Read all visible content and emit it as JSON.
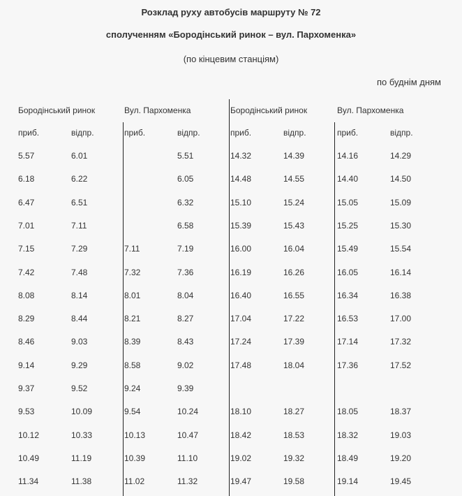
{
  "title": "Розклад руху автобусів маршруту № 72",
  "subtitle": "сполученням «Бородінський ринок – вул. Пархоменка»",
  "note": "(по кінцевим станціям)",
  "days": "по буднім дням",
  "stations": [
    "Бородінський ринок",
    "Вул. Пархоменка",
    "Бородінський ринок",
    "Вул. Пархоменка"
  ],
  "subheaders": [
    "приб.",
    "відпр.",
    "приб.",
    "відпр.",
    "приб.",
    "відпр.",
    "приб.",
    "відпр."
  ],
  "rows": [
    [
      "5.57",
      "6.01",
      "",
      "5.51",
      "14.32",
      "14.39",
      "14.16",
      "14.29"
    ],
    [
      "6.18",
      "6.22",
      "",
      "6.05",
      "14.48",
      "14.55",
      "14.40",
      "14.50"
    ],
    [
      "6.47",
      "6.51",
      "",
      "6.32",
      "15.10",
      "15.24",
      "15.05",
      "15.09"
    ],
    [
      "7.01",
      "7.11",
      "",
      "6.58",
      "15.39",
      "15.43",
      "15.25",
      "15.30"
    ],
    [
      "7.15",
      "7.29",
      "7.11",
      "7.19",
      "16.00",
      "16.04",
      "15.49",
      "15.54"
    ],
    [
      "7.42",
      "7.48",
      "7.32",
      "7.36",
      "16.19",
      "16.26",
      "16.05",
      "16.14"
    ],
    [
      "8.08",
      "8.14",
      "8.01",
      "8.04",
      "16.40",
      "16.55",
      "16.34",
      "16.38"
    ],
    [
      "8.29",
      "8.44",
      "8.21",
      "8.27",
      "17.04",
      "17.22",
      "16.53",
      "17.00"
    ],
    [
      "8.46",
      "9.03",
      "8.39",
      "8.43",
      "17.24",
      "17.39",
      "17.14",
      "17.32"
    ],
    [
      "9.14",
      "9.29",
      "8.58",
      "9.02",
      "17.48",
      "18.04",
      "17.36",
      "17.52"
    ],
    [
      "9.37",
      "9.52",
      "9.24",
      "9.39",
      "",
      "",
      "",
      ""
    ],
    [
      "9.53",
      "10.09",
      "9.54",
      "10.24",
      "18.10",
      "18.27",
      "18.05",
      "18.37"
    ],
    [
      "10.12",
      "10.33",
      "10.13",
      "10.47",
      "18.42",
      "18.53",
      "18.32",
      "19.03"
    ],
    [
      "10.49",
      "11.19",
      "10.39",
      "11.10",
      "19.02",
      "19.32",
      "18.49",
      "19.20"
    ],
    [
      "11.34",
      "11.38",
      "11.02",
      "11.32",
      "19.47",
      "19.58",
      "19.14",
      "19.45"
    ]
  ]
}
